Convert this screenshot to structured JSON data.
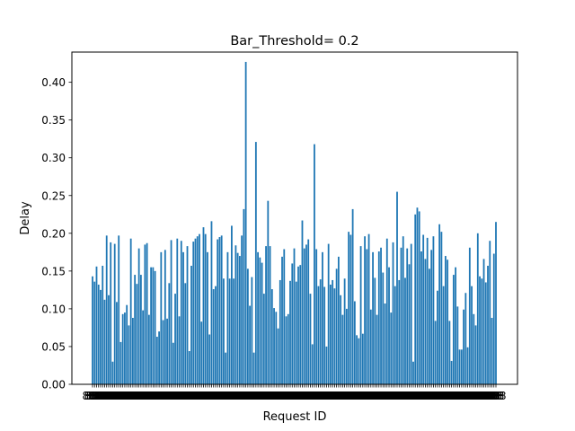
{
  "chart_data": {
    "type": "bar",
    "title": "Bar_Threshold= 0.2",
    "xlabel": "Request ID",
    "ylabel": "Delay",
    "ylim": [
      0,
      0.44
    ],
    "yticks": [
      "0.00",
      "0.05",
      "0.10",
      "0.15",
      "0.20",
      "0.25",
      "0.30",
      "0.35",
      "0.40"
    ],
    "x_tick_text": "888",
    "color": "#1f77b4",
    "grid": false,
    "values": [
      0.143,
      0.136,
      0.156,
      0.132,
      0.125,
      0.157,
      0.112,
      0.197,
      0.118,
      0.188,
      0.03,
      0.186,
      0.109,
      0.197,
      0.056,
      0.093,
      0.095,
      0.105,
      0.078,
      0.193,
      0.088,
      0.145,
      0.133,
      0.18,
      0.145,
      0.098,
      0.185,
      0.187,
      0.092,
      0.155,
      0.155,
      0.15,
      0.063,
      0.07,
      0.175,
      0.085,
      0.178,
      0.087,
      0.134,
      0.191,
      0.055,
      0.12,
      0.193,
      0.09,
      0.19,
      0.175,
      0.134,
      0.183,
      0.044,
      0.157,
      0.189,
      0.193,
      0.196,
      0.199,
      0.083,
      0.208,
      0.199,
      0.175,
      0.066,
      0.216,
      0.126,
      0.13,
      0.192,
      0.195,
      0.197,
      0.14,
      0.042,
      0.175,
      0.14,
      0.21,
      0.14,
      0.184,
      0.174,
      0.17,
      0.197,
      0.232,
      0.427,
      0.153,
      0.104,
      0.142,
      0.042,
      0.321,
      0.175,
      0.168,
      0.161,
      0.12,
      0.183,
      0.243,
      0.183,
      0.126,
      0.101,
      0.096,
      0.074,
      0.138,
      0.169,
      0.179,
      0.09,
      0.093,
      0.137,
      0.16,
      0.18,
      0.136,
      0.156,
      0.158,
      0.217,
      0.18,
      0.185,
      0.192,
      0.12,
      0.053,
      0.318,
      0.179,
      0.13,
      0.139,
      0.175,
      0.129,
      0.05,
      0.186,
      0.132,
      0.138,
      0.127,
      0.153,
      0.169,
      0.118,
      0.092,
      0.14,
      0.1,
      0.202,
      0.198,
      0.232,
      0.11,
      0.065,
      0.061,
      0.183,
      0.067,
      0.196,
      0.179,
      0.199,
      0.099,
      0.175,
      0.141,
      0.092,
      0.176,
      0.181,
      0.148,
      0.107,
      0.193,
      0.155,
      0.095,
      0.188,
      0.13,
      0.255,
      0.138,
      0.181,
      0.196,
      0.141,
      0.18,
      0.159,
      0.186,
      0.03,
      0.225,
      0.234,
      0.229,
      0.176,
      0.198,
      0.166,
      0.194,
      0.153,
      0.178,
      0.196,
      0.084,
      0.124,
      0.212,
      0.202,
      0.13,
      0.17,
      0.165,
      0.084,
      0.031,
      0.145,
      0.155,
      0.103,
      0.046,
      0.046,
      0.099,
      0.121,
      0.049,
      0.181,
      0.13,
      0.093,
      0.078,
      0.2,
      0.143,
      0.14,
      0.166,
      0.135,
      0.157,
      0.19,
      0.088,
      0.173,
      0.215
    ]
  }
}
